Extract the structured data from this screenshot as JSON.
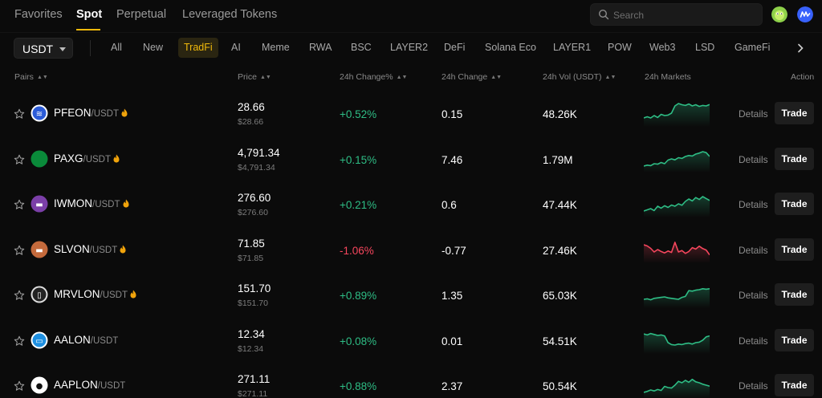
{
  "tabs": [
    {
      "label": "Favorites",
      "active": false
    },
    {
      "label": "Spot",
      "active": true
    },
    {
      "label": "Perpetual",
      "active": false
    },
    {
      "label": "Leveraged Tokens",
      "active": false
    }
  ],
  "search": {
    "placeholder": "Search",
    "icon": "search-icon"
  },
  "quote_currency": "USDT",
  "categories": [
    {
      "label": "All",
      "active": false
    },
    {
      "label": "New",
      "active": false
    },
    {
      "label": "TradFi",
      "active": true
    },
    {
      "label": "AI",
      "active": false
    },
    {
      "label": "Meme",
      "active": false
    },
    {
      "label": "RWA",
      "active": false
    },
    {
      "label": "BSC",
      "active": false
    },
    {
      "label": "LAYER2",
      "active": false
    },
    {
      "label": "DeFi",
      "active": false
    },
    {
      "label": "Solana Eco",
      "active": false
    },
    {
      "label": "LAYER1",
      "active": false
    },
    {
      "label": "POW",
      "active": false
    },
    {
      "label": "Web3",
      "active": false
    },
    {
      "label": "LSD",
      "active": false
    },
    {
      "label": "GameFi",
      "active": false
    }
  ],
  "columns": {
    "pairs": "Pairs",
    "price": "Price",
    "change_pct": "24h Change%",
    "change": "24h Change",
    "volume": "24h Vol (USDT)",
    "markets": "24h Markets",
    "action": "Action"
  },
  "actions": {
    "details": "Details",
    "trade": "Trade"
  },
  "colors": {
    "up": "#2ebd85",
    "down": "#f6465d",
    "accent": "#f0b90b"
  },
  "rows": [
    {
      "base": "PFEON",
      "quote": "/USDT",
      "hot": true,
      "price": "28.66",
      "price_sub": "$28.66",
      "change_pct": "+0.52%",
      "direction": "up",
      "change": "0.15",
      "volume": "48.26K",
      "icon": "pfeon-coin-icon",
      "spark": [
        3,
        3.5,
        3,
        4,
        3.2,
        4.5,
        4,
        4.2,
        5,
        8,
        9,
        8.5,
        8.2,
        8.8,
        8,
        8.5,
        7.8,
        8.2,
        8,
        8.6
      ]
    },
    {
      "base": "PAXG",
      "quote": "/USDT",
      "hot": true,
      "price": "4,791.34",
      "price_sub": "$4,791.34",
      "change_pct": "+0.15%",
      "direction": "up",
      "change": "7.46",
      "volume": "1.79M",
      "icon": "paxg-coin-icon",
      "spark": [
        2,
        2.4,
        2.2,
        3,
        2.8,
        3.5,
        3,
        4.5,
        5,
        4.6,
        5.5,
        5.2,
        6,
        6.4,
        6.2,
        7,
        7.4,
        8,
        7.6,
        6
      ]
    },
    {
      "base": "IWMON",
      "quote": "/USDT",
      "hot": true,
      "price": "276.60",
      "price_sub": "$276.60",
      "change_pct": "+0.21%",
      "direction": "up",
      "change": "0.6",
      "volume": "47.44K",
      "icon": "iwmon-coin-icon",
      "spark": [
        2,
        2.5,
        3,
        2.2,
        4,
        3.2,
        4.2,
        3.5,
        4.5,
        4,
        5,
        4.4,
        6,
        7,
        6.2,
        7.6,
        6.8,
        8,
        7.2,
        6.4
      ]
    },
    {
      "base": "SLVON",
      "quote": "/USDT",
      "hot": true,
      "price": "71.85",
      "price_sub": "$71.85",
      "change_pct": "-1.06%",
      "direction": "down",
      "change": "-0.77",
      "volume": "27.46K",
      "icon": "slvon-coin-icon",
      "spark": [
        7,
        6.5,
        5.5,
        4,
        5,
        4.2,
        3.6,
        4.4,
        3.8,
        8,
        4,
        4.6,
        3.4,
        4.2,
        5.8,
        5.2,
        6.4,
        5.4,
        4.8,
        2.8
      ]
    },
    {
      "base": "MRVLON",
      "quote": "/USDT",
      "hot": true,
      "price": "151.70",
      "price_sub": "$151.70",
      "change_pct": "+0.89%",
      "direction": "up",
      "change": "1.35",
      "volume": "65.03K",
      "icon": "mrvlon-coin-icon",
      "spark": [
        3,
        3.2,
        2.8,
        3.4,
        3.6,
        3.8,
        4,
        3.6,
        3.4,
        3.2,
        3,
        3.8,
        4.2,
        6.6,
        6.4,
        6.8,
        7,
        7.4,
        7.2,
        7.4
      ]
    },
    {
      "base": "AALON",
      "quote": "/USDT",
      "hot": false,
      "price": "12.34",
      "price_sub": "$12.34",
      "change_pct": "+0.08%",
      "direction": "up",
      "change": "0.01",
      "volume": "54.51K",
      "icon": "aalon-coin-icon",
      "spark": [
        7.6,
        7.2,
        7.8,
        7.4,
        7,
        7.2,
        6.8,
        4,
        3.2,
        3,
        3.4,
        3.2,
        3.6,
        3.8,
        3.4,
        4,
        4.2,
        5,
        6.4,
        6.8
      ]
    },
    {
      "base": "AAPLON",
      "quote": "/USDT",
      "hot": false,
      "price": "271.11",
      "price_sub": "$271.11",
      "change_pct": "+0.88%",
      "direction": "up",
      "change": "2.37",
      "volume": "50.54K",
      "icon": "aaplon-coin-icon",
      "spark": [
        2,
        2.4,
        3,
        2.6,
        3.2,
        2.8,
        4.5,
        4,
        3.8,
        5,
        6.6,
        6,
        7,
        6.2,
        7.4,
        6.4,
        6,
        5.4,
        5,
        4.6
      ]
    }
  ]
}
